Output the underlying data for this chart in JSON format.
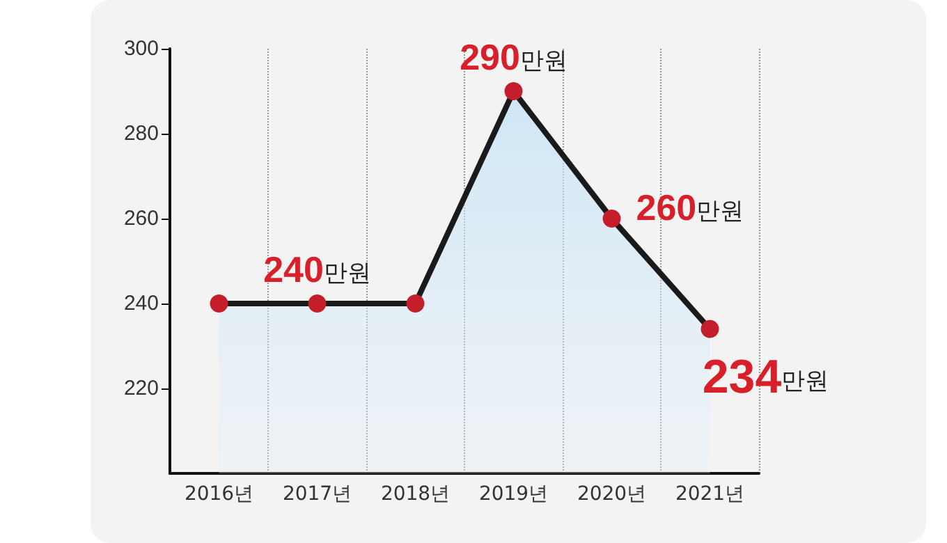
{
  "chart_data": {
    "type": "area",
    "categories": [
      "2016년",
      "2017년",
      "2018년",
      "2019년",
      "2020년",
      "2021년"
    ],
    "series": [
      {
        "color": "#1a1a1a",
        "colors": [
          "#c41e2a",
          "#c41e2a",
          "#c41e2a",
          "#c41e2a",
          "#c41e2a",
          "#c41e2a"
        ],
        "values": [
          240,
          240,
          240,
          290,
          260,
          234
        ],
        "value_labels": [
          null,
          "240만원",
          null,
          "290만원",
          "260만원",
          "234만원"
        ]
      }
    ],
    "ylim": [
      200,
      300
    ],
    "yticks": [
      220,
      240,
      260,
      280,
      300
    ],
    "grid": "x",
    "marker": "circle"
  }
}
